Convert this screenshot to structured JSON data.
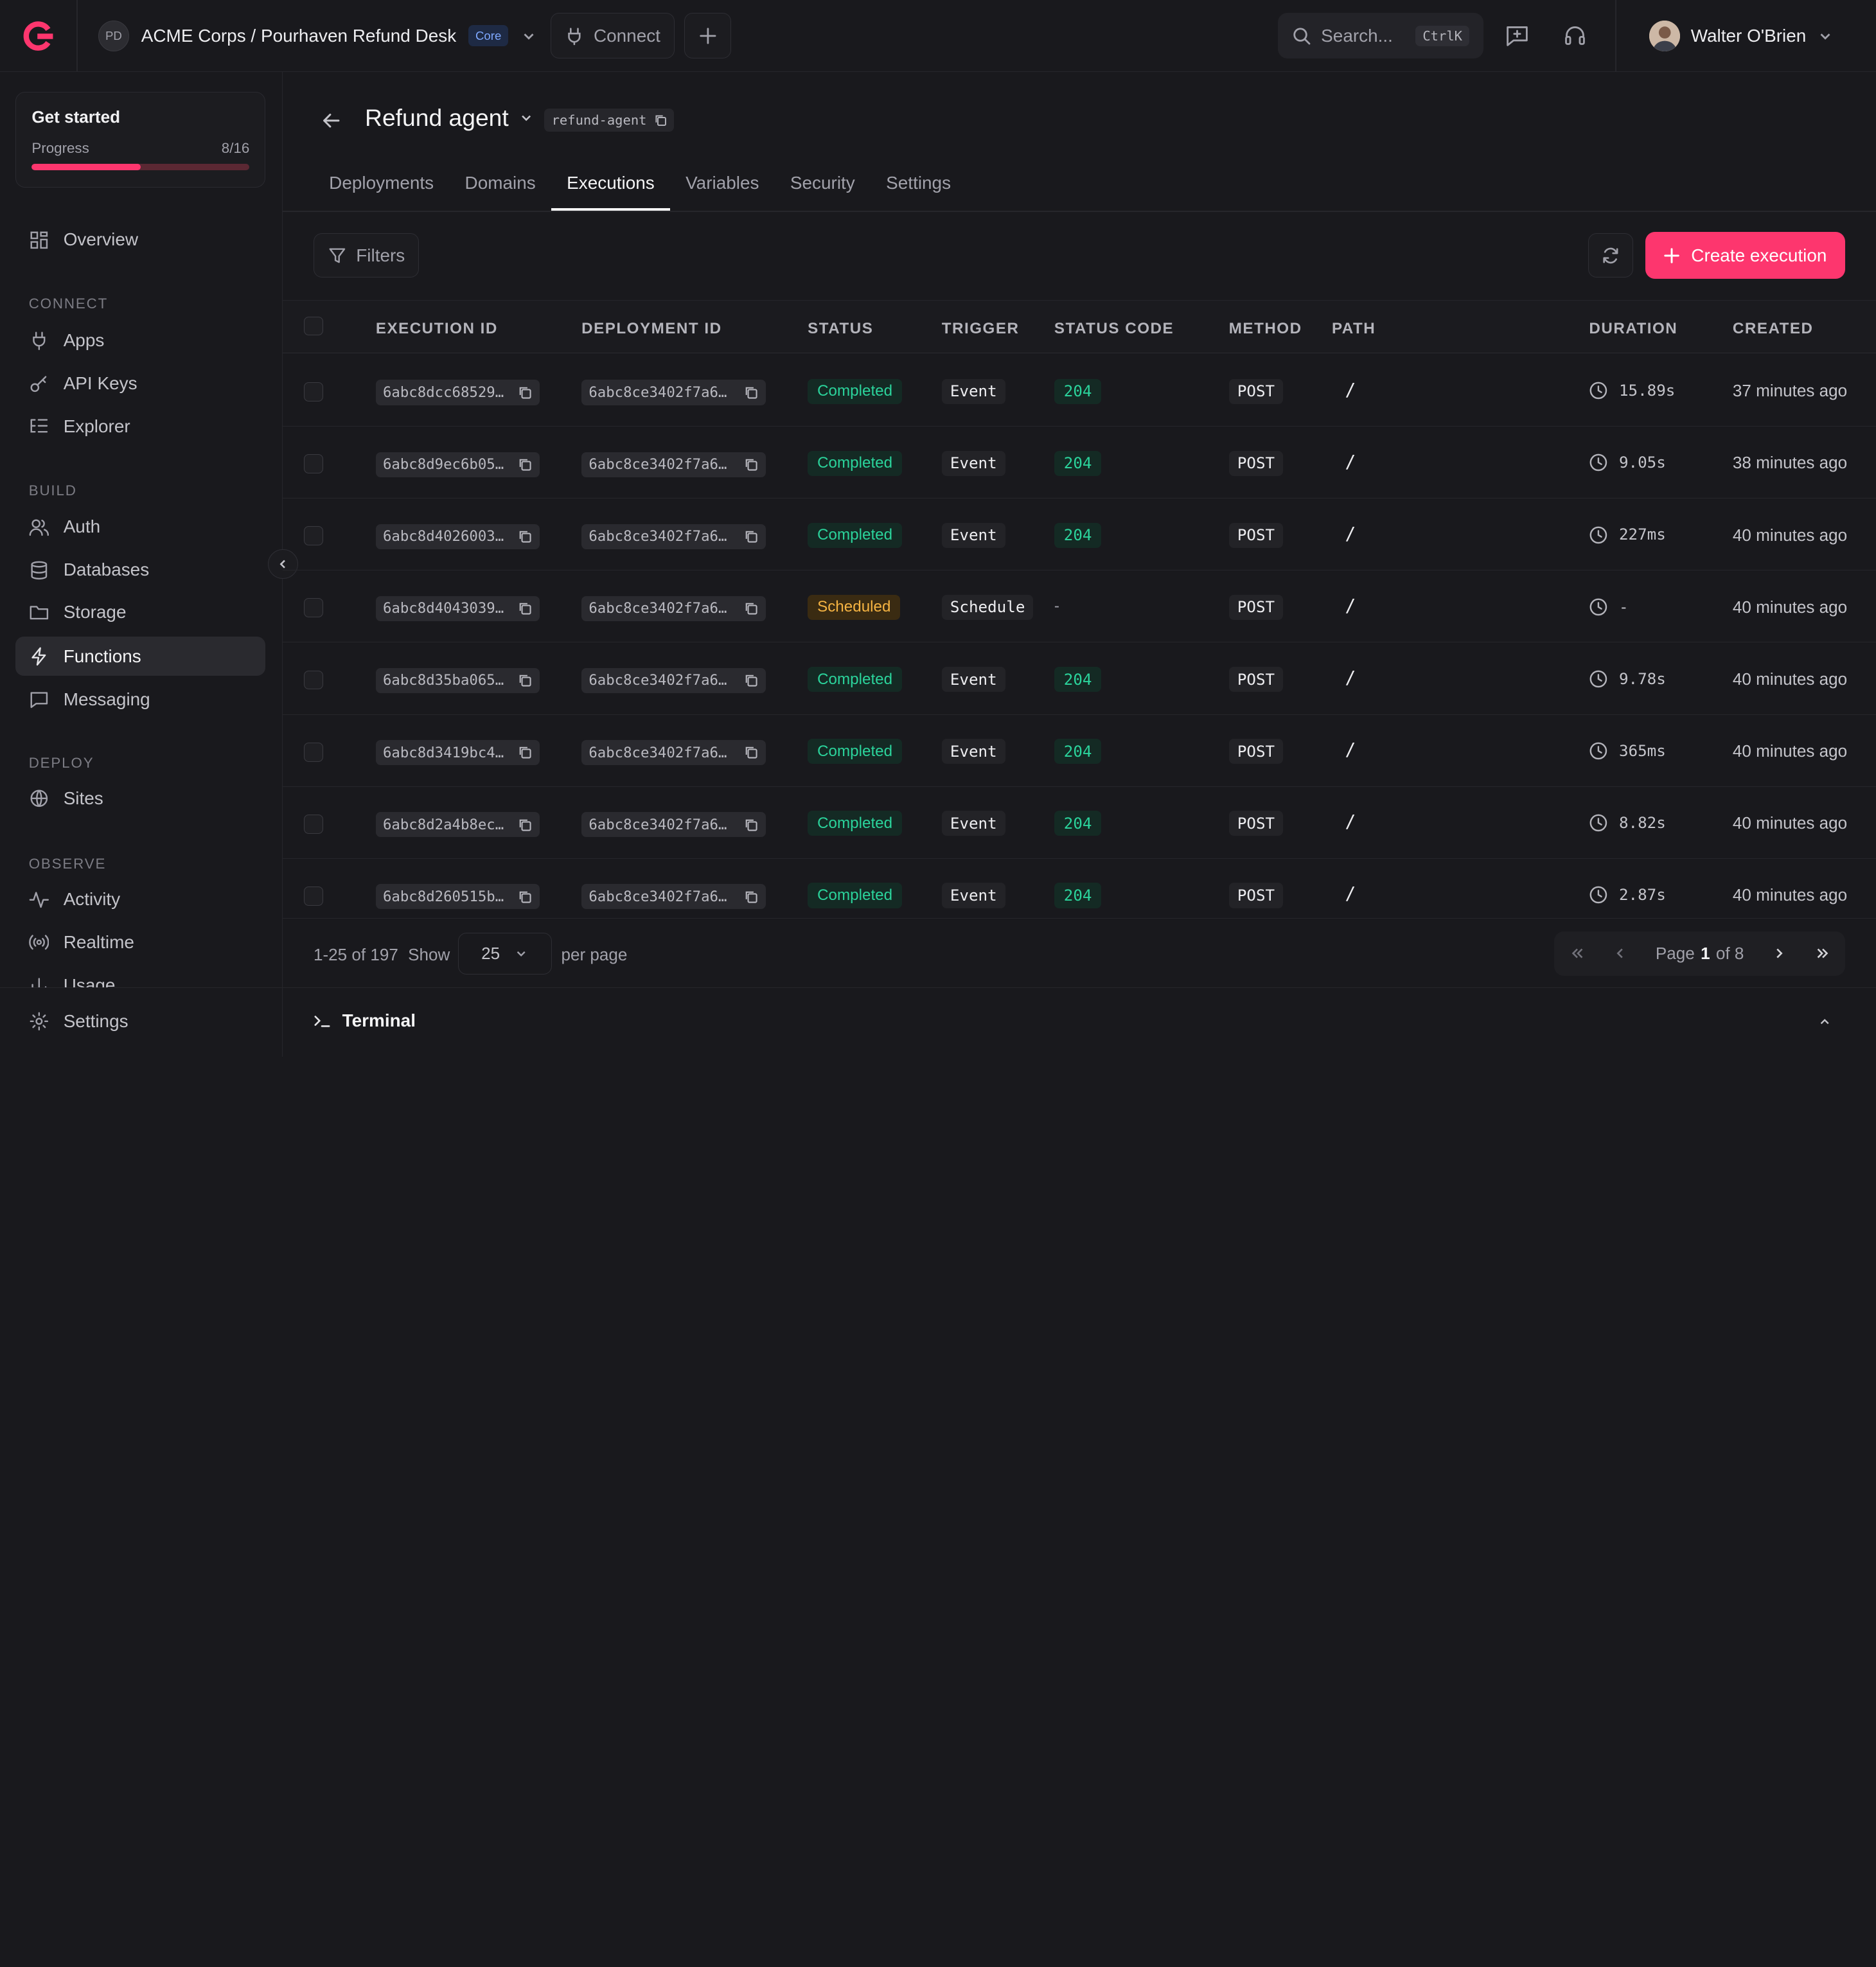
{
  "header": {
    "org_initials": "PD",
    "breadcrumb": "ACME Corps / Pourhaven Refund Desk",
    "plan_badge": "Core",
    "connect_label": "Connect",
    "search_placeholder": "Search...",
    "search_shortcut": "CtrlK",
    "user_name": "Walter O'Brien"
  },
  "sidebar": {
    "get_started": {
      "title": "Get started",
      "progress_label": "Progress",
      "progress_text": "8/16",
      "progress_fraction": 0.5
    },
    "overview": "Overview",
    "sections": {
      "connect": "CONNECT",
      "build": "BUILD",
      "deploy": "DEPLOY",
      "observe": "OBSERVE"
    },
    "items": {
      "apps": "Apps",
      "api_keys": "API Keys",
      "explorer": "Explorer",
      "auth": "Auth",
      "databases": "Databases",
      "storage": "Storage",
      "functions": "Functions",
      "messaging": "Messaging",
      "sites": "Sites",
      "activity": "Activity",
      "realtime": "Realtime",
      "usage": "Usage",
      "settings": "Settings"
    }
  },
  "page": {
    "title": "Refund agent",
    "slug": "refund-agent",
    "tabs": [
      "Deployments",
      "Domains",
      "Executions",
      "Variables",
      "Security",
      "Settings"
    ],
    "active_tab": "Executions",
    "filters_label": "Filters",
    "create_label": "Create execution"
  },
  "table": {
    "columns": {
      "execution_id": "EXECUTION ID",
      "deployment_id": "DEPLOYMENT ID",
      "status": "STATUS",
      "trigger": "TRIGGER",
      "status_code": "STATUS CODE",
      "method": "METHOD",
      "path": "PATH",
      "duration": "DURATION",
      "created": "CREATED"
    },
    "rows": [
      {
        "execution_id": "6abc8dcc68529…",
        "deployment_id": "6abc8ce3402f7a6…",
        "status": "Completed",
        "trigger": "Event",
        "status_code": "204",
        "method": "POST",
        "path": "/",
        "duration": "15.89s",
        "created": "37 minutes ago"
      },
      {
        "execution_id": "6abc8d9ec6b05…",
        "deployment_id": "6abc8ce3402f7a6…",
        "status": "Completed",
        "trigger": "Event",
        "status_code": "204",
        "method": "POST",
        "path": "/",
        "duration": "9.05s",
        "created": "38 minutes ago"
      },
      {
        "execution_id": "6abc8d4026003…",
        "deployment_id": "6abc8ce3402f7a6…",
        "status": "Completed",
        "trigger": "Event",
        "status_code": "204",
        "method": "POST",
        "path": "/",
        "duration": "227ms",
        "created": "40 minutes ago"
      },
      {
        "execution_id": "6abc8d4043039…",
        "deployment_id": "6abc8ce3402f7a6…",
        "status": "Scheduled",
        "trigger": "Schedule",
        "status_code": "-",
        "method": "POST",
        "path": "/",
        "duration": "-",
        "created": "40 minutes ago"
      },
      {
        "execution_id": "6abc8d35ba065…",
        "deployment_id": "6abc8ce3402f7a6…",
        "status": "Completed",
        "trigger": "Event",
        "status_code": "204",
        "method": "POST",
        "path": "/",
        "duration": "9.78s",
        "created": "40 minutes ago"
      },
      {
        "execution_id": "6abc8d3419bc4…",
        "deployment_id": "6abc8ce3402f7a6…",
        "status": "Completed",
        "trigger": "Event",
        "status_code": "204",
        "method": "POST",
        "path": "/",
        "duration": "365ms",
        "created": "40 minutes ago"
      },
      {
        "execution_id": "6abc8d2a4b8ec…",
        "deployment_id": "6abc8ce3402f7a6…",
        "status": "Completed",
        "trigger": "Event",
        "status_code": "204",
        "method": "POST",
        "path": "/",
        "duration": "8.82s",
        "created": "40 minutes ago"
      },
      {
        "execution_id": "6abc8d260515b…",
        "deployment_id": "6abc8ce3402f7a6…",
        "status": "Completed",
        "trigger": "Event",
        "status_code": "204",
        "method": "POST",
        "path": "/",
        "duration": "2.87s",
        "created": "40 minutes ago"
      }
    ]
  },
  "pagination": {
    "range": "1-25 of 197",
    "show_label": "Show",
    "per_page_value": "25",
    "per_page_label": "per page",
    "page_label": "Page",
    "current_page": "1",
    "of_label": "of 8"
  },
  "terminal": {
    "label": "Terminal"
  },
  "colors": {
    "accent": "#fd366e",
    "success": "#2bd39b",
    "warning": "#f5b342",
    "background": "#19191d"
  }
}
